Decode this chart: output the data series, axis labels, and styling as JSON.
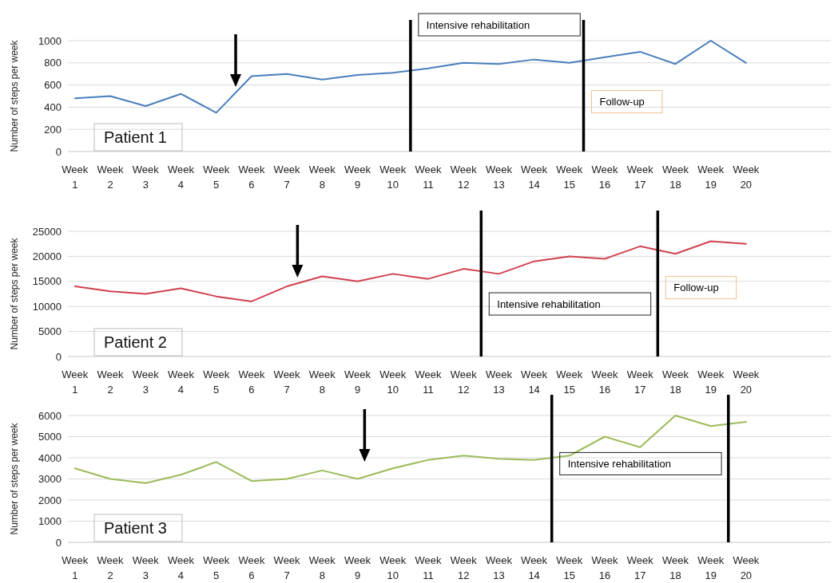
{
  "chart_data": [
    {
      "type": "line",
      "title": "Patient 1",
      "ylabel": "Number of steps per week",
      "categories": [
        "Week 1",
        "Week 2",
        "Week 3",
        "Week 4",
        "Week 5",
        "Week 6",
        "Week 7",
        "Week 8",
        "Week 9",
        "Week 10",
        "Week 11",
        "Week 12",
        "Week 13",
        "Week 14",
        "Week 15",
        "Week 16",
        "Week 17",
        "Week 18",
        "Week 19",
        "Week 20"
      ],
      "ylim": [
        0,
        1000
      ],
      "yticks": [
        0,
        200,
        400,
        600,
        800,
        1000
      ],
      "grid": "y",
      "marker": "none",
      "line_style": "solid",
      "series": [
        {
          "color": "#4a7ebb",
          "values": [
            480,
            500,
            410,
            520,
            350,
            680,
            700,
            650,
            690,
            710,
            750,
            800,
            790,
            830,
            800,
            850,
            900,
            790,
            1000,
            800
          ]
        }
      ],
      "annotations": [
        "Intensive rehabilitation",
        "Follow-up"
      ]
    },
    {
      "type": "line",
      "title": "Patient 2",
      "ylabel": "Number of steps per week",
      "categories": [
        "Week 1",
        "Week 2",
        "Week 3",
        "Week 4",
        "Week 5",
        "Week 6",
        "Week 7",
        "Week 8",
        "Week 9",
        "Week 10",
        "Week 11",
        "Week 12",
        "Week 13",
        "Week 14",
        "Week 15",
        "Week 16",
        "Week 17",
        "Week 18",
        "Week 19",
        "Week 20"
      ],
      "ylim": [
        0,
        25000
      ],
      "yticks": [
        0,
        5000,
        10000,
        15000,
        20000,
        25000
      ],
      "grid": "y",
      "marker": "none",
      "line_style": "solid",
      "series": [
        {
          "color": "#d0414f",
          "values": [
            14000,
            13000,
            12500,
            13600,
            12000,
            11000,
            14000,
            16000,
            15000,
            16500,
            15500,
            17500,
            16500,
            19000,
            20000,
            19500,
            22000,
            20500,
            23000,
            22500
          ]
        }
      ],
      "annotations": [
        "Intensive rehabilitation",
        "Follow-up"
      ]
    },
    {
      "type": "line",
      "title": "Patient 3",
      "ylabel": "Number of steps per week",
      "categories": [
        "Week 1",
        "Week 2",
        "Week 3",
        "Week 4",
        "Week 5",
        "Week 6",
        "Week 7",
        "Week 8",
        "Week 9",
        "Week 10",
        "Week 11",
        "Week 12",
        "Week 13",
        "Week 14",
        "Week 15",
        "Week 16",
        "Week 17",
        "Week 18",
        "Week 19",
        "Week 20"
      ],
      "ylim": [
        0,
        6000
      ],
      "yticks": [
        0,
        1000,
        2000,
        3000,
        4000,
        5000,
        6000
      ],
      "grid": "y",
      "marker": "none",
      "line_style": "solid",
      "series": [
        {
          "color": "#9bbb59",
          "values": [
            3500,
            3000,
            2800,
            3200,
            3800,
            2900,
            3000,
            3400,
            3000,
            3500,
            3900,
            4100,
            3950,
            3900,
            4100,
            5000,
            4500,
            6000,
            5500,
            5700
          ]
        }
      ],
      "annotations": [
        "Intensive rehabilitation"
      ]
    }
  ]
}
